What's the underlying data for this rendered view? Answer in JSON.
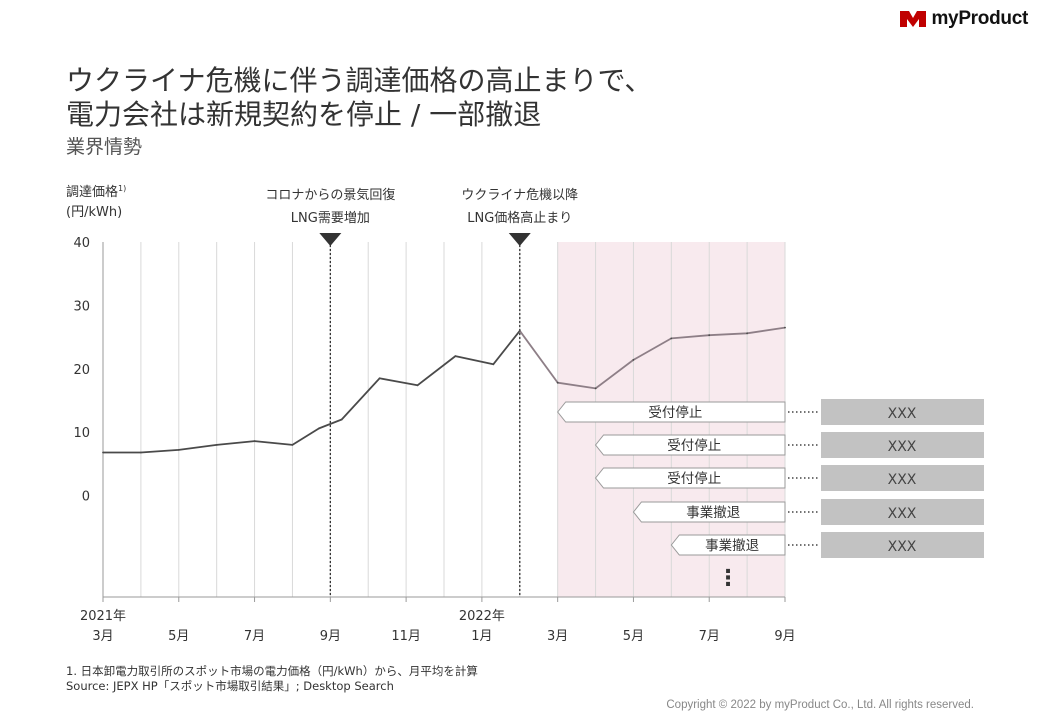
{
  "brand": {
    "name": "myProduct",
    "mark_color": "#c00000"
  },
  "title_lines": [
    "ウクライナ危機に伴う調達価格の高止まりで、",
    "電力会社は新規契約を停止 / 一部撤退"
  ],
  "subtitle": "業界情勢",
  "chart_data": {
    "type": "line",
    "ylabel": "調達価格",
    "ylabel_superscript": "1)",
    "yunit": "(円/kWh)",
    "ylim": [
      -16,
      40
    ],
    "yticks": [
      0,
      10,
      20,
      30,
      40
    ],
    "x_tick_labels": [
      {
        "index": 0,
        "year": "2021年",
        "month": "3月"
      },
      {
        "index": 2,
        "month": "5月"
      },
      {
        "index": 4,
        "month": "7月"
      },
      {
        "index": 6,
        "month": "9月"
      },
      {
        "index": 8,
        "month": "11月"
      },
      {
        "index": 10,
        "year": "2022年",
        "month": "1月"
      },
      {
        "index": 12,
        "month": "3月"
      },
      {
        "index": 14,
        "month": "5月"
      },
      {
        "index": 16,
        "month": "7月"
      },
      {
        "index": 18,
        "month": "9月"
      }
    ],
    "x": [
      0,
      1,
      2,
      3,
      4,
      5,
      5.7,
      6.3,
      7.3,
      8.3,
      9.3,
      10.3,
      11.0,
      12.0,
      13.0,
      14.0,
      15.0,
      16.0,
      17.0,
      18.0
    ],
    "values": [
      6.8,
      6.8,
      7.2,
      8.0,
      8.6,
      8.0,
      10.6,
      12.0,
      18.5,
      17.4,
      22.0,
      20.7,
      26.0,
      17.8,
      16.9,
      21.4,
      24.8,
      25.3,
      25.6,
      26.5
    ],
    "forecast_from_x": 11.0,
    "series_colors": {
      "actual": "#4a4a4a",
      "forecast": "#8e7f87"
    },
    "highlight_start_x": 12,
    "highlight_color": "#f8eaee",
    "events": [
      {
        "x": 6,
        "line1": "コロナからの景気回復",
        "line2": "LNG需要増加"
      },
      {
        "x": 11,
        "line1": "ウクライナ危機以降",
        "line2": "LNG価格高止まり"
      }
    ],
    "callouts": [
      {
        "start_x": 12.0,
        "label": "受付停止",
        "target": "XXX"
      },
      {
        "start_x": 13.0,
        "label": "受付停止",
        "target": "XXX"
      },
      {
        "start_x": 13.0,
        "label": "受付停止",
        "target": "XXX"
      },
      {
        "start_x": 14.0,
        "label": "事業撤退",
        "target": "XXX"
      },
      {
        "start_x": 15.0,
        "label": "事業撤退",
        "target": "XXX"
      }
    ],
    "more_indicator": "⋮"
  },
  "footnote_lines": [
    "1. 日本卸電力取引所のスポット市場の電力価格（円/kWh）から、月平均を計算",
    "Source: JEPX HP「スポット市場取引結果」; Desktop Search"
  ],
  "copyright": "Copyright © 2022 by myProduct Co., Ltd.  All rights reserved."
}
